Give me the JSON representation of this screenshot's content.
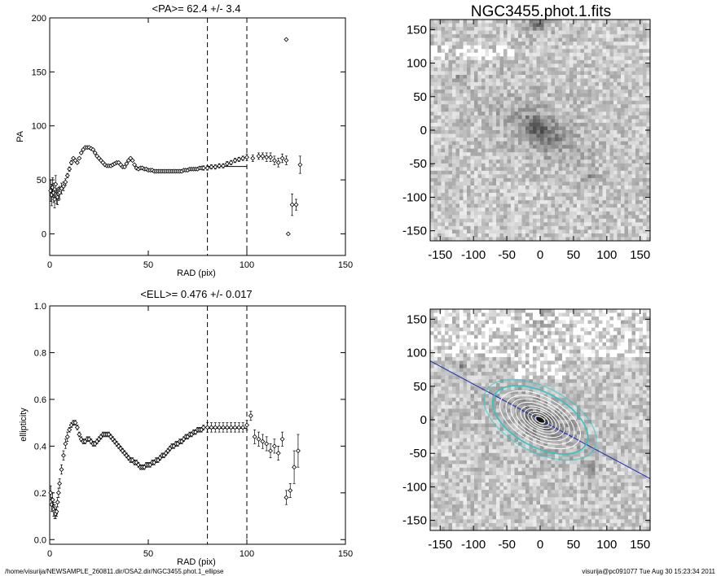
{
  "figure_title": "NGC3455.phot.1.fits",
  "footer": {
    "path": "/home/visurija/NEWSAMPLE_260811.dir/OSA2.dir/NGC3455.phot.1_ellipse",
    "user_stamp": "visurija@pc091077  Tue Aug 30 15:23:34 2011"
  },
  "chart_data": [
    {
      "type": "scatter",
      "title": "<PA>=  62.4 +/-   3.4",
      "xlabel": "RAD (pix)",
      "ylabel": "PA",
      "xlim": [
        0,
        150
      ],
      "ylim": [
        -20,
        200
      ],
      "xticks": [
        0,
        50,
        100,
        150
      ],
      "yticks": [
        0,
        50,
        100,
        150,
        200
      ],
      "vlines": [
        80,
        100
      ],
      "mean_segment": {
        "x": [
          80,
          100
        ],
        "y": 62.4
      },
      "series": [
        {
          "marker": "diamond",
          "x": [
            0.5,
            1,
            1.5,
            2,
            2.5,
            3,
            3.5,
            4,
            4.5,
            5,
            6,
            7,
            8,
            9,
            10,
            11,
            12,
            13,
            14,
            15,
            16,
            17,
            18,
            19,
            20,
            21,
            22,
            23,
            24,
            25,
            26,
            27,
            28,
            29,
            30,
            31,
            32,
            33,
            34,
            35,
            36,
            37,
            38,
            39,
            40,
            41,
            42,
            43,
            44,
            45,
            46,
            47,
            48,
            49,
            50,
            51,
            52,
            53,
            54,
            55,
            56,
            57,
            58,
            59,
            60,
            61,
            62,
            63,
            64,
            65,
            66,
            67,
            68,
            69,
            70,
            71,
            72,
            73,
            74,
            75,
            76,
            77,
            78,
            80,
            82,
            84,
            86,
            88,
            90,
            92,
            94,
            96,
            98,
            100,
            103,
            106,
            108,
            110,
            112,
            114,
            116,
            118,
            120,
            121,
            123,
            125,
            127,
            120
          ],
          "y": [
            40,
            36,
            43,
            38,
            32,
            46,
            35,
            34,
            37,
            38,
            42,
            44,
            48,
            54,
            60,
            66,
            70,
            68,
            66,
            70,
            75,
            78,
            80,
            80,
            80,
            79,
            78,
            75,
            72,
            70,
            68,
            66,
            64,
            63,
            63,
            63,
            64,
            65,
            66,
            66,
            64,
            62,
            62,
            65,
            68,
            70,
            68,
            64,
            61,
            60,
            61,
            61,
            60,
            60,
            59,
            59,
            59,
            58,
            58,
            58,
            58,
            58,
            58,
            58,
            58,
            58,
            58,
            58,
            58,
            58,
            58,
            58,
            59,
            59,
            59,
            60,
            60,
            60,
            60,
            60,
            61,
            61,
            61,
            61,
            62,
            62,
            63,
            63,
            65,
            66,
            68,
            69,
            70,
            71,
            70,
            72,
            72,
            71,
            71,
            68,
            66,
            70,
            68,
            0,
            27,
            27,
            64,
            180
          ],
          "err": [
            10,
            10,
            9,
            9,
            8,
            8,
            7,
            7,
            6,
            6,
            5,
            4,
            3,
            2,
            2,
            2,
            1,
            1,
            1,
            1,
            1,
            1,
            1,
            1,
            1,
            1,
            1,
            1,
            1,
            1,
            1,
            1,
            1,
            1,
            1,
            1,
            1,
            1,
            1,
            1,
            1,
            1,
            1,
            1,
            1,
            1,
            1,
            1,
            1,
            1,
            1,
            1,
            1,
            1,
            1,
            1,
            1,
            1,
            1,
            1,
            1,
            1,
            1,
            1,
            1,
            1,
            1,
            1,
            1,
            1,
            1,
            1,
            1,
            1,
            1,
            1,
            1,
            1,
            1,
            1,
            1,
            1,
            2,
            2,
            2,
            2,
            2,
            2,
            2,
            2,
            2,
            2,
            2,
            3,
            3,
            3,
            3,
            4,
            4,
            4,
            4,
            4,
            4,
            0,
            10,
            5,
            8,
            0
          ]
        }
      ]
    },
    {
      "type": "scatter",
      "title": "<ELL>= 0.476 +/-  0.017",
      "xlabel": "RAD (pix)",
      "ylabel": "ellipticity",
      "xlim": [
        0,
        150
      ],
      "ylim": [
        -0.02,
        1.0
      ],
      "xticks": [
        0,
        50,
        100,
        150
      ],
      "yticks": [
        0.0,
        0.2,
        0.4,
        0.6,
        0.8,
        1.0
      ],
      "vlines": [
        80,
        100
      ],
      "mean_segment": {
        "x": [
          80,
          100
        ],
        "y": 0.476
      },
      "series": [
        {
          "marker": "diamond",
          "x": [
            0.5,
            1,
            1.5,
            2,
            2.5,
            3,
            3.5,
            4,
            4.5,
            5,
            6,
            7,
            8,
            9,
            10,
            11,
            12,
            13,
            14,
            15,
            16,
            17,
            18,
            19,
            20,
            21,
            22,
            23,
            24,
            25,
            26,
            27,
            28,
            29,
            30,
            31,
            32,
            33,
            34,
            35,
            36,
            37,
            38,
            39,
            40,
            41,
            42,
            43,
            44,
            45,
            46,
            47,
            48,
            49,
            50,
            51,
            52,
            53,
            54,
            55,
            56,
            57,
            58,
            59,
            60,
            61,
            62,
            63,
            64,
            65,
            66,
            67,
            68,
            69,
            70,
            71,
            72,
            73,
            74,
            75,
            76,
            77,
            78,
            80,
            82,
            84,
            86,
            88,
            90,
            92,
            94,
            96,
            98,
            100,
            102,
            104,
            106,
            108,
            110,
            112,
            114,
            116,
            118,
            120,
            122,
            124,
            126
          ],
          "y": [
            0.2,
            0.15,
            0.17,
            0.13,
            0.12,
            0.11,
            0.12,
            0.16,
            0.2,
            0.24,
            0.3,
            0.36,
            0.41,
            0.44,
            0.47,
            0.49,
            0.5,
            0.5,
            0.48,
            0.45,
            0.43,
            0.42,
            0.42,
            0.43,
            0.43,
            0.42,
            0.41,
            0.41,
            0.42,
            0.43,
            0.44,
            0.45,
            0.45,
            0.45,
            0.45,
            0.44,
            0.43,
            0.42,
            0.41,
            0.4,
            0.39,
            0.38,
            0.37,
            0.36,
            0.35,
            0.34,
            0.34,
            0.33,
            0.33,
            0.32,
            0.31,
            0.31,
            0.31,
            0.32,
            0.32,
            0.32,
            0.33,
            0.33,
            0.34,
            0.34,
            0.35,
            0.36,
            0.36,
            0.37,
            0.38,
            0.39,
            0.4,
            0.4,
            0.41,
            0.41,
            0.42,
            0.42,
            0.43,
            0.44,
            0.44,
            0.45,
            0.45,
            0.46,
            0.46,
            0.47,
            0.47,
            0.47,
            0.48,
            0.48,
            0.48,
            0.48,
            0.48,
            0.48,
            0.48,
            0.48,
            0.48,
            0.48,
            0.48,
            0.49,
            0.53,
            0.44,
            0.43,
            0.42,
            0.41,
            0.38,
            0.4,
            0.37,
            0.43,
            0.18,
            0.21,
            0.31,
            0.38
          ],
          "err": [
            0.03,
            0.03,
            0.03,
            0.03,
            0.03,
            0.02,
            0.02,
            0.02,
            0.02,
            0.02,
            0.02,
            0.02,
            0.02,
            0.02,
            0.01,
            0.01,
            0.01,
            0.01,
            0.01,
            0.01,
            0.01,
            0.01,
            0.01,
            0.01,
            0.01,
            0.01,
            0.01,
            0.01,
            0.01,
            0.01,
            0.01,
            0.01,
            0.01,
            0.01,
            0.01,
            0.01,
            0.01,
            0.01,
            0.01,
            0.01,
            0.01,
            0.01,
            0.01,
            0.01,
            0.01,
            0.01,
            0.01,
            0.01,
            0.01,
            0.01,
            0.01,
            0.01,
            0.01,
            0.01,
            0.01,
            0.01,
            0.01,
            0.01,
            0.01,
            0.01,
            0.01,
            0.01,
            0.01,
            0.01,
            0.01,
            0.01,
            0.01,
            0.01,
            0.01,
            0.01,
            0.01,
            0.01,
            0.01,
            0.01,
            0.01,
            0.01,
            0.01,
            0.01,
            0.01,
            0.01,
            0.01,
            0.01,
            0.01,
            0.02,
            0.02,
            0.02,
            0.02,
            0.02,
            0.02,
            0.02,
            0.02,
            0.02,
            0.02,
            0.02,
            0.02,
            0.03,
            0.03,
            0.03,
            0.03,
            0.03,
            0.03,
            0.03,
            0.03,
            0.03,
            0.03,
            0.07,
            0.07
          ]
        }
      ]
    },
    {
      "type": "heatmap",
      "title": "NGC3455.phot.1.fits",
      "xlim": [
        -165,
        165
      ],
      "ylim": [
        -165,
        165
      ],
      "xticks": [
        -150,
        -100,
        -50,
        0,
        50,
        100,
        150
      ],
      "yticks": [
        -150,
        -100,
        -50,
        0,
        50,
        100,
        150
      ],
      "description_values": {
        "galaxy_center": [
          0,
          0
        ]
      }
    },
    {
      "type": "heatmap",
      "title": "",
      "xlim": [
        -165,
        165
      ],
      "ylim": [
        -165,
        165
      ],
      "xticks": [
        -150,
        -100,
        -50,
        0,
        50,
        100,
        150
      ],
      "yticks": [
        -150,
        -100,
        -50,
        0,
        50,
        100,
        150
      ],
      "isophote_pa_deg": 62.4,
      "isophote_ell": 0.476,
      "isophote_semi_major": [
        8,
        14,
        20,
        26,
        32,
        40,
        48,
        56,
        66,
        78,
        92
      ],
      "colors": {
        "isophote": "#ffffff",
        "outer_isophote": "#2ec4c4",
        "major_axis": "#1a2fb5"
      }
    }
  ]
}
